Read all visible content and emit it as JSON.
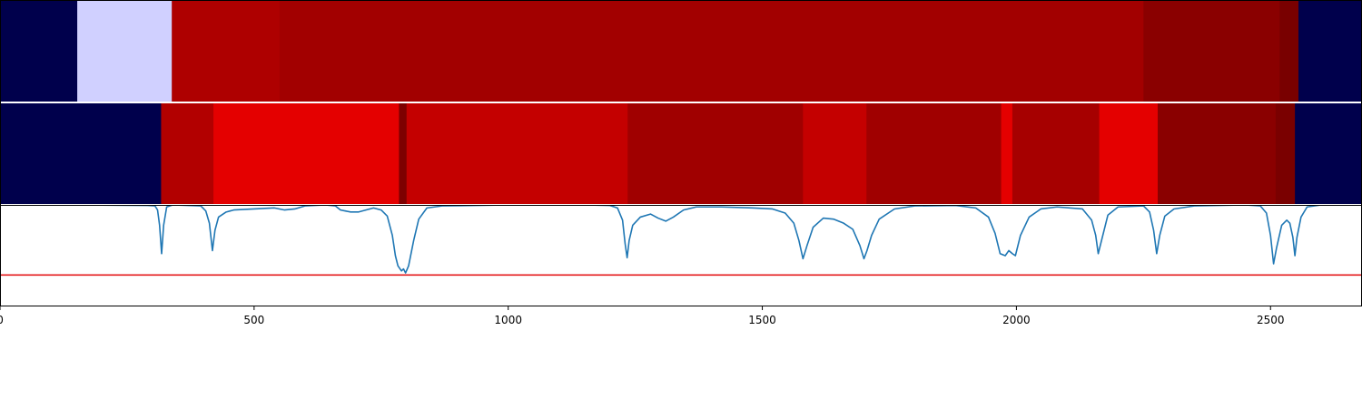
{
  "chart_data": [
    {
      "type": "heatmap",
      "panel": "top-band",
      "xlim": [
        0,
        2680
      ],
      "segments": [
        {
          "start": 0,
          "end": 152,
          "color": "#00004c"
        },
        {
          "start": 152,
          "end": 338,
          "color": "#d0d0ff"
        },
        {
          "start": 338,
          "end": 550,
          "color": "#ae0000"
        },
        {
          "start": 550,
          "end": 2250,
          "color": "#a20000"
        },
        {
          "start": 2250,
          "end": 2518,
          "color": "#8a0000"
        },
        {
          "start": 2518,
          "end": 2555,
          "color": "#790000"
        },
        {
          "start": 2555,
          "end": 2680,
          "color": "#00004c"
        }
      ]
    },
    {
      "type": "heatmap",
      "panel": "middle-band",
      "xlim": [
        0,
        2680
      ],
      "segments": [
        {
          "start": 0,
          "end": 317,
          "color": "#00004c"
        },
        {
          "start": 317,
          "end": 420,
          "color": "#b20000"
        },
        {
          "start": 420,
          "end": 785,
          "color": "#e40000"
        },
        {
          "start": 785,
          "end": 800,
          "color": "#7e0000"
        },
        {
          "start": 800,
          "end": 1235,
          "color": "#c40000"
        },
        {
          "start": 1235,
          "end": 1580,
          "color": "#a00000"
        },
        {
          "start": 1580,
          "end": 1705,
          "color": "#c40000"
        },
        {
          "start": 1705,
          "end": 1970,
          "color": "#a00000"
        },
        {
          "start": 1970,
          "end": 1992,
          "color": "#e40000"
        },
        {
          "start": 1992,
          "end": 2163,
          "color": "#a60000"
        },
        {
          "start": 2163,
          "end": 2278,
          "color": "#e40000"
        },
        {
          "start": 2278,
          "end": 2510,
          "color": "#8a0000"
        },
        {
          "start": 2510,
          "end": 2548,
          "color": "#7a0000"
        },
        {
          "start": 2548,
          "end": 2680,
          "color": "#00004c"
        }
      ]
    },
    {
      "type": "line",
      "panel": "signal",
      "xlim": [
        0,
        2680
      ],
      "ylim": [
        0,
        1
      ],
      "x_ticks": [
        0,
        500,
        1000,
        1500,
        2000,
        2500
      ],
      "x_tick_labels": [
        "0",
        "500",
        "1000",
        "1500",
        "2000",
        "2500"
      ],
      "grid": false,
      "threshold": {
        "y": 0.31,
        "color": "#e41a1c"
      },
      "series": [
        {
          "color": "#1f77b4",
          "points": [
            [
              140,
              1.0
            ],
            [
              290,
              0.995
            ],
            [
              305,
              0.99
            ],
            [
              310,
              0.95
            ],
            [
              314,
              0.8
            ],
            [
              318,
              0.52
            ],
            [
              322,
              0.8
            ],
            [
              328,
              0.98
            ],
            [
              340,
              1.0
            ],
            [
              395,
              0.99
            ],
            [
              405,
              0.94
            ],
            [
              412,
              0.82
            ],
            [
              418,
              0.55
            ],
            [
              423,
              0.75
            ],
            [
              430,
              0.88
            ],
            [
              445,
              0.93
            ],
            [
              460,
              0.95
            ],
            [
              500,
              0.96
            ],
            [
              540,
              0.97
            ],
            [
              560,
              0.95
            ],
            [
              580,
              0.96
            ],
            [
              600,
              0.99
            ],
            [
              640,
              1.0
            ],
            [
              660,
              0.99
            ],
            [
              670,
              0.95
            ],
            [
              690,
              0.93
            ],
            [
              705,
              0.93
            ],
            [
              720,
              0.95
            ],
            [
              735,
              0.97
            ],
            [
              750,
              0.95
            ],
            [
              762,
              0.89
            ],
            [
              772,
              0.7
            ],
            [
              778,
              0.5
            ],
            [
              783,
              0.4
            ],
            [
              790,
              0.35
            ],
            [
              794,
              0.37
            ],
            [
              798,
              0.33
            ],
            [
              804,
              0.4
            ],
            [
              814,
              0.65
            ],
            [
              824,
              0.86
            ],
            [
              840,
              0.97
            ],
            [
              870,
              0.99
            ],
            [
              1000,
              1.0
            ],
            [
              1150,
              1.0
            ],
            [
              1200,
              0.995
            ],
            [
              1215,
              0.97
            ],
            [
              1225,
              0.85
            ],
            [
              1230,
              0.62
            ],
            [
              1234,
              0.48
            ],
            [
              1238,
              0.65
            ],
            [
              1245,
              0.8
            ],
            [
              1260,
              0.88
            ],
            [
              1280,
              0.91
            ],
            [
              1295,
              0.87
            ],
            [
              1310,
              0.84
            ],
            [
              1325,
              0.88
            ],
            [
              1345,
              0.95
            ],
            [
              1370,
              0.98
            ],
            [
              1420,
              0.98
            ],
            [
              1480,
              0.97
            ],
            [
              1520,
              0.96
            ],
            [
              1545,
              0.92
            ],
            [
              1562,
              0.82
            ],
            [
              1572,
              0.65
            ],
            [
              1580,
              0.47
            ],
            [
              1588,
              0.6
            ],
            [
              1600,
              0.78
            ],
            [
              1620,
              0.87
            ],
            [
              1640,
              0.86
            ],
            [
              1660,
              0.82
            ],
            [
              1678,
              0.76
            ],
            [
              1692,
              0.6
            ],
            [
              1700,
              0.47
            ],
            [
              1706,
              0.55
            ],
            [
              1715,
              0.7
            ],
            [
              1730,
              0.86
            ],
            [
              1760,
              0.96
            ],
            [
              1800,
              0.99
            ],
            [
              1880,
              0.995
            ],
            [
              1920,
              0.97
            ],
            [
              1945,
              0.88
            ],
            [
              1958,
              0.72
            ],
            [
              1968,
              0.52
            ],
            [
              1978,
              0.5
            ],
            [
              1985,
              0.55
            ],
            [
              1992,
              0.52
            ],
            [
              1998,
              0.5
            ],
            [
              2008,
              0.7
            ],
            [
              2025,
              0.88
            ],
            [
              2048,
              0.96
            ],
            [
              2080,
              0.98
            ],
            [
              2130,
              0.96
            ],
            [
              2148,
              0.85
            ],
            [
              2156,
              0.7
            ],
            [
              2161,
              0.52
            ],
            [
              2168,
              0.66
            ],
            [
              2180,
              0.9
            ],
            [
              2200,
              0.98
            ],
            [
              2250,
              0.99
            ],
            [
              2262,
              0.93
            ],
            [
              2270,
              0.75
            ],
            [
              2276,
              0.52
            ],
            [
              2282,
              0.7
            ],
            [
              2292,
              0.89
            ],
            [
              2310,
              0.96
            ],
            [
              2350,
              0.99
            ],
            [
              2450,
              1.0
            ],
            [
              2480,
              0.99
            ],
            [
              2492,
              0.92
            ],
            [
              2500,
              0.7
            ],
            [
              2506,
              0.42
            ],
            [
              2512,
              0.58
            ],
            [
              2522,
              0.8
            ],
            [
              2532,
              0.85
            ],
            [
              2538,
              0.82
            ],
            [
              2544,
              0.68
            ],
            [
              2548,
              0.5
            ],
            [
              2552,
              0.68
            ],
            [
              2560,
              0.88
            ],
            [
              2572,
              0.98
            ],
            [
              2600,
              1.0
            ],
            [
              2680,
              1.0
            ]
          ]
        }
      ]
    }
  ]
}
